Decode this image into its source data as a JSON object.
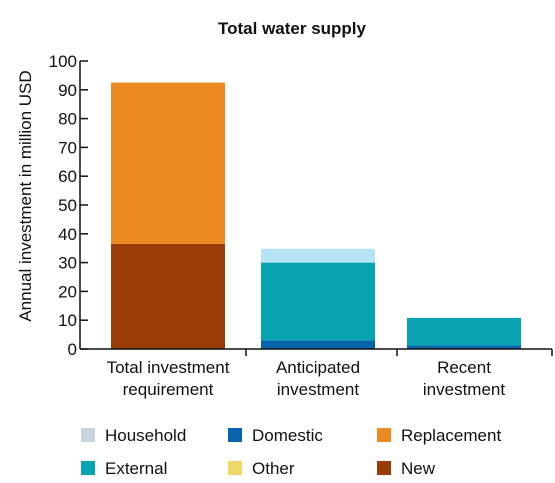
{
  "chart_data": {
    "type": "bar",
    "stacked": true,
    "title": "Total water supply",
    "ylabel": "Annual investment in million USD",
    "xlabel": "",
    "ylim": [
      0,
      100
    ],
    "yticks": [
      0,
      10,
      20,
      30,
      40,
      50,
      60,
      70,
      80,
      90,
      100
    ],
    "categories": [
      [
        "Total investment",
        "requirement"
      ],
      [
        "Anticipated",
        "investment"
      ],
      [
        "Recent",
        "investment"
      ]
    ],
    "series": [
      {
        "name": "New",
        "color": "#9a3c05",
        "values": [
          36.5,
          0,
          0
        ]
      },
      {
        "name": "Replacement",
        "color": "#ee8a22",
        "values": [
          56,
          0,
          0
        ]
      },
      {
        "name": "Domestic",
        "color": "#0a63ad",
        "values": [
          0,
          3,
          1.2
        ]
      },
      {
        "name": "External",
        "color": "#07a3b2",
        "values": [
          0,
          27,
          9.6
        ]
      },
      {
        "name": "Household",
        "color": "#b5e4f6",
        "values": [
          0,
          4.8,
          0
        ]
      },
      {
        "name": "Other",
        "color": "#efd966",
        "values": [
          0,
          0,
          0
        ]
      }
    ],
    "legend_position": "bottom",
    "legend_order": [
      "Household",
      "Domestic",
      "Replacement",
      "External",
      "Other",
      "New"
    ],
    "legend_swatch_colors": {
      "Household": "#c7d5dc",
      "Domestic": "#0a63ad",
      "Replacement": "#ee8a22",
      "External": "#07a3b2",
      "Other": "#efd966",
      "New": "#9a3c05"
    },
    "grid": false
  }
}
